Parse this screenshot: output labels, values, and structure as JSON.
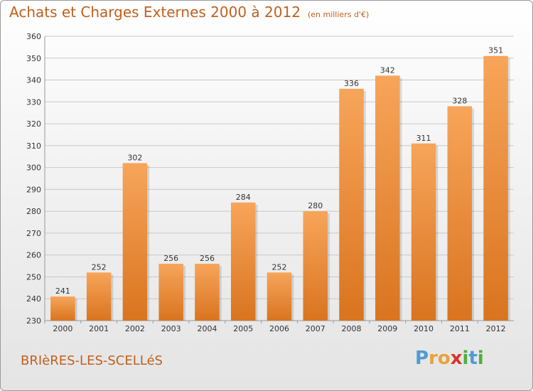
{
  "header": {
    "title": "Achats et Charges Externes 2000 à 2012",
    "subtitle": "(en milliers d'€)"
  },
  "footer": {
    "place": "BRIèRES-LES-SCELLéS",
    "brand_letters": [
      {
        "char": "P",
        "color": "#4f9bd6"
      },
      {
        "char": "r",
        "color": "#e8a33a"
      },
      {
        "char": "o",
        "color": "#e8a33a"
      },
      {
        "char": "x",
        "color": "#d9352b"
      },
      {
        "char": "i",
        "color": "#4fae3c"
      },
      {
        "char": "t",
        "color": "#4f9bd6"
      },
      {
        "char": "i",
        "color": "#4fae3c"
      }
    ]
  },
  "colors": {
    "bar_light": "#f7a55a",
    "bar_dark": "#d9741f",
    "grid": "#c8c8c8",
    "accent_text": "#c0601e"
  },
  "chart_data": {
    "type": "bar",
    "title": "Achats et Charges Externes 2000 à 2012",
    "subtitle": "(en milliers d'€)",
    "categories": [
      "2000",
      "2001",
      "2002",
      "2003",
      "2004",
      "2005",
      "2006",
      "2007",
      "2008",
      "2009",
      "2010",
      "2011",
      "2012"
    ],
    "values": [
      241,
      252,
      302,
      256,
      256,
      284,
      252,
      280,
      336,
      342,
      311,
      328,
      351
    ],
    "ylim": [
      230,
      360
    ],
    "yticks": [
      230,
      240,
      250,
      260,
      270,
      280,
      290,
      300,
      310,
      320,
      330,
      340,
      350,
      360
    ],
    "grid": true,
    "xlabel": "",
    "ylabel": ""
  }
}
